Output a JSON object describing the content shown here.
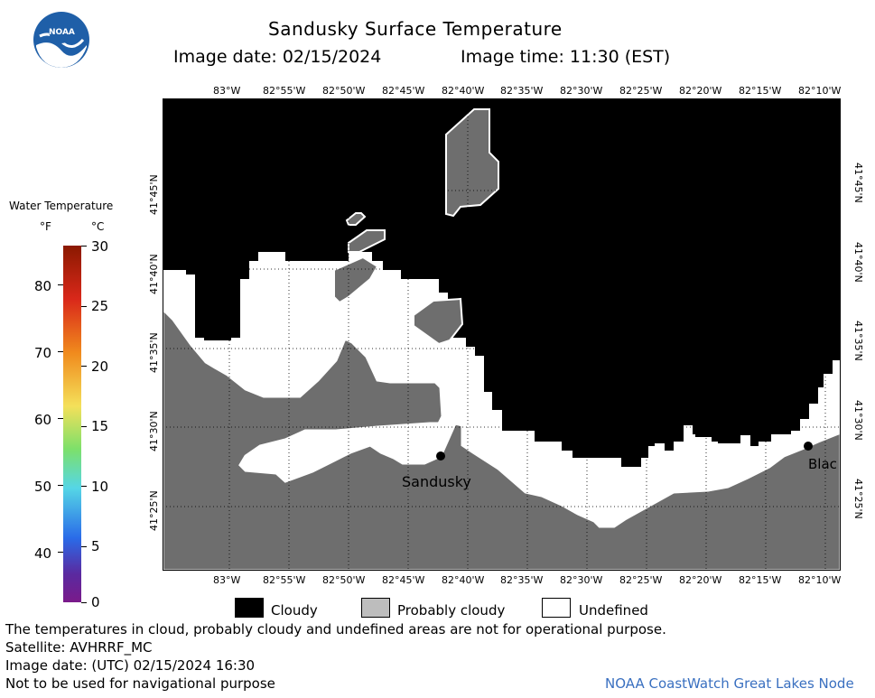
{
  "header": {
    "title": "Sandusky Surface Temperature",
    "image_date": "Image date: 02/15/2024",
    "image_time": "Image time: 11:30 (EST)"
  },
  "logo": {
    "text": "NOAA"
  },
  "colorbar": {
    "title": "Water Temperature",
    "unit_f": "°F",
    "unit_c": "°C",
    "f_ticks": [
      "80",
      "70",
      "60",
      "50",
      "40"
    ],
    "c_ticks": [
      "30",
      "25",
      "20",
      "15",
      "10",
      "5",
      "0"
    ]
  },
  "axes": {
    "lon_labels": [
      "83°W",
      "82°55'W",
      "82°50'W",
      "82°45'W",
      "82°40'W",
      "82°35'W",
      "82°30'W",
      "82°25'W",
      "82°20'W",
      "82°15'W",
      "82°10'W"
    ],
    "lat_labels": [
      "41°45'N",
      "41°40'N",
      "41°35'N",
      "41°30'N",
      "41°25'N"
    ]
  },
  "places": {
    "sandusky": "Sandusky",
    "blac": "Blac"
  },
  "legend": {
    "cloudy": "Cloudy",
    "probably_cloudy": "Probably cloudy",
    "undefined": "Undefined"
  },
  "footer": {
    "disclaimer": "The temperatures in cloud, probably cloudy and undefined areas are not for operational purpose.",
    "satellite": "Satellite: AVHRRF_MC",
    "utc_date": "Image date: (UTC) 02/15/2024  16:30",
    "nav_warning": "Not to be used for navigational purpose",
    "credit": "NOAA CoastWatch Great Lakes Node"
  },
  "colors": {
    "cloudy": "#000000",
    "probably_cloudy": "#6e6e6e",
    "undefined": "#ffffff",
    "credit": "#3a70c0"
  }
}
